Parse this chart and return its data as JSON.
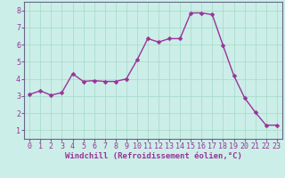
{
  "x": [
    0,
    1,
    2,
    3,
    4,
    5,
    6,
    7,
    8,
    9,
    10,
    11,
    12,
    13,
    14,
    15,
    16,
    17,
    18,
    19,
    20,
    21,
    22,
    23
  ],
  "y": [
    3.1,
    3.3,
    3.05,
    3.2,
    4.3,
    3.85,
    3.9,
    3.85,
    3.85,
    4.0,
    5.1,
    6.35,
    6.15,
    6.35,
    6.35,
    7.85,
    7.85,
    7.75,
    5.95,
    4.2,
    2.9,
    2.05,
    1.3,
    1.3
  ],
  "line_color": "#993399",
  "marker_color": "#993399",
  "bg_color": "#cceee8",
  "grid_color": "#aaddcc",
  "xlabel": "Windchill (Refroidissement éolien,°C)",
  "ylim": [
    0.5,
    8.5
  ],
  "xlim": [
    -0.5,
    23.5
  ],
  "yticks": [
    1,
    2,
    3,
    4,
    5,
    6,
    7,
    8
  ],
  "xticks": [
    0,
    1,
    2,
    3,
    4,
    5,
    6,
    7,
    8,
    9,
    10,
    11,
    12,
    13,
    14,
    15,
    16,
    17,
    18,
    19,
    20,
    21,
    22,
    23
  ],
  "xlabel_fontsize": 6.5,
  "tick_fontsize": 6.0,
  "line_width": 1.0,
  "marker_size": 2.5
}
